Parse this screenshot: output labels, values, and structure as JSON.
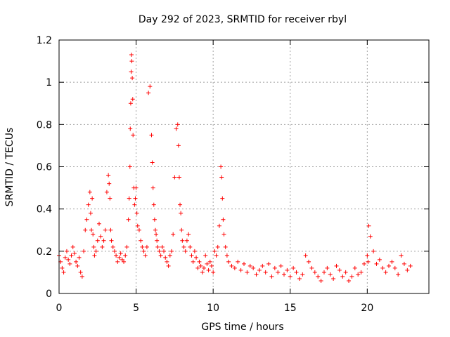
{
  "chart_data": {
    "type": "scatter",
    "title": "Day 292 of 2023, SRMTID for receiver rbyl",
    "xlabel": "GPS time / hours",
    "ylabel": "SRMTID / TECUs",
    "xlim": [
      0,
      24
    ],
    "ylim": [
      0,
      1.2
    ],
    "xticks": [
      0,
      5,
      10,
      15,
      20
    ],
    "xtick_labels": [
      "0",
      "5",
      "10",
      "15",
      "20"
    ],
    "yticks": [
      0,
      0.2,
      0.4,
      0.6,
      0.8,
      1.0,
      1.2
    ],
    "ytick_labels": [
      "0",
      "0.2",
      "0.4",
      "0.6",
      "0.8",
      "1",
      "1.2"
    ],
    "grid": true,
    "marker": "+",
    "color": "#ff0000",
    "series": [
      {
        "name": "SRMTID",
        "x": [
          0.0,
          0.1,
          0.2,
          0.3,
          0.4,
          0.5,
          0.6,
          0.7,
          0.8,
          0.9,
          1.0,
          1.1,
          1.2,
          1.3,
          1.4,
          1.5,
          1.6,
          1.7,
          1.8,
          1.9,
          2.0,
          2.05,
          2.1,
          2.15,
          2.2,
          2.25,
          2.3,
          2.4,
          2.5,
          2.6,
          2.7,
          2.8,
          2.9,
          3.0,
          3.1,
          3.2,
          3.25,
          3.3,
          3.35,
          3.4,
          3.5,
          3.6,
          3.7,
          3.8,
          3.9,
          4.0,
          4.1,
          4.2,
          4.3,
          4.4,
          4.5,
          4.55,
          4.6,
          4.62,
          4.65,
          4.68,
          4.7,
          4.72,
          4.75,
          4.78,
          4.8,
          4.85,
          4.9,
          4.95,
          5.0,
          5.05,
          5.1,
          5.2,
          5.3,
          5.4,
          5.5,
          5.6,
          5.7,
          5.8,
          5.9,
          6.0,
          6.05,
          6.1,
          6.15,
          6.2,
          6.25,
          6.3,
          6.35,
          6.4,
          6.5,
          6.6,
          6.7,
          6.8,
          6.9,
          7.0,
          7.1,
          7.2,
          7.3,
          7.4,
          7.5,
          7.6,
          7.7,
          7.75,
          7.8,
          7.85,
          7.9,
          7.95,
          8.0,
          8.1,
          8.2,
          8.3,
          8.4,
          8.5,
          8.6,
          8.7,
          8.8,
          8.9,
          9.0,
          9.1,
          9.2,
          9.3,
          9.4,
          9.5,
          9.6,
          9.7,
          9.8,
          9.9,
          10.0,
          10.1,
          10.2,
          10.3,
          10.4,
          10.5,
          10.55,
          10.6,
          10.65,
          10.7,
          10.8,
          10.9,
          11.0,
          11.2,
          11.4,
          11.6,
          11.8,
          12.0,
          12.2,
          12.4,
          12.6,
          12.8,
          13.0,
          13.2,
          13.4,
          13.6,
          13.8,
          14.0,
          14.2,
          14.4,
          14.6,
          14.8,
          15.0,
          15.2,
          15.4,
          15.6,
          15.8,
          16.0,
          16.2,
          16.4,
          16.6,
          16.8,
          17.0,
          17.2,
          17.4,
          17.6,
          17.8,
          18.0,
          18.2,
          18.4,
          18.6,
          18.8,
          19.0,
          19.2,
          19.4,
          19.6,
          19.8,
          20.0,
          20.05,
          20.1,
          20.2,
          20.4,
          20.6,
          20.8,
          21.0,
          21.2,
          21.4,
          21.6,
          21.8,
          22.0,
          22.2,
          22.4,
          22.6,
          22.8
        ],
        "y": [
          0.18,
          0.15,
          0.12,
          0.1,
          0.17,
          0.2,
          0.16,
          0.14,
          0.18,
          0.22,
          0.19,
          0.15,
          0.13,
          0.17,
          0.1,
          0.08,
          0.2,
          0.3,
          0.35,
          0.42,
          0.48,
          0.38,
          0.3,
          0.45,
          0.28,
          0.22,
          0.18,
          0.2,
          0.25,
          0.33,
          0.27,
          0.22,
          0.25,
          0.3,
          0.48,
          0.56,
          0.52,
          0.45,
          0.3,
          0.25,
          0.22,
          0.2,
          0.18,
          0.15,
          0.17,
          0.19,
          0.16,
          0.15,
          0.18,
          0.22,
          0.35,
          0.45,
          0.6,
          0.78,
          0.9,
          1.05,
          1.13,
          1.1,
          1.02,
          0.92,
          0.75,
          0.5,
          0.42,
          0.45,
          0.5,
          0.38,
          0.32,
          0.3,
          0.25,
          0.22,
          0.2,
          0.18,
          0.22,
          0.95,
          0.98,
          0.75,
          0.62,
          0.5,
          0.42,
          0.35,
          0.3,
          0.28,
          0.25,
          0.22,
          0.2,
          0.18,
          0.22,
          0.2,
          0.17,
          0.15,
          0.13,
          0.18,
          0.2,
          0.28,
          0.55,
          0.78,
          0.8,
          0.7,
          0.55,
          0.42,
          0.38,
          0.3,
          0.25,
          0.22,
          0.2,
          0.25,
          0.28,
          0.22,
          0.18,
          0.15,
          0.2,
          0.17,
          0.12,
          0.15,
          0.13,
          0.1,
          0.12,
          0.18,
          0.14,
          0.11,
          0.15,
          0.13,
          0.1,
          0.2,
          0.18,
          0.22,
          0.32,
          0.6,
          0.55,
          0.45,
          0.35,
          0.28,
          0.22,
          0.18,
          0.15,
          0.13,
          0.12,
          0.15,
          0.11,
          0.14,
          0.1,
          0.13,
          0.12,
          0.09,
          0.11,
          0.13,
          0.1,
          0.14,
          0.08,
          0.12,
          0.1,
          0.13,
          0.09,
          0.11,
          0.08,
          0.12,
          0.1,
          0.07,
          0.09,
          0.18,
          0.15,
          0.12,
          0.1,
          0.08,
          0.06,
          0.1,
          0.12,
          0.09,
          0.07,
          0.13,
          0.11,
          0.08,
          0.1,
          0.06,
          0.08,
          0.12,
          0.09,
          0.1,
          0.14,
          0.18,
          0.15,
          0.32,
          0.27,
          0.2,
          0.14,
          0.16,
          0.12,
          0.1,
          0.13,
          0.15,
          0.12,
          0.09,
          0.18,
          0.14,
          0.11,
          0.13
        ]
      }
    ]
  }
}
